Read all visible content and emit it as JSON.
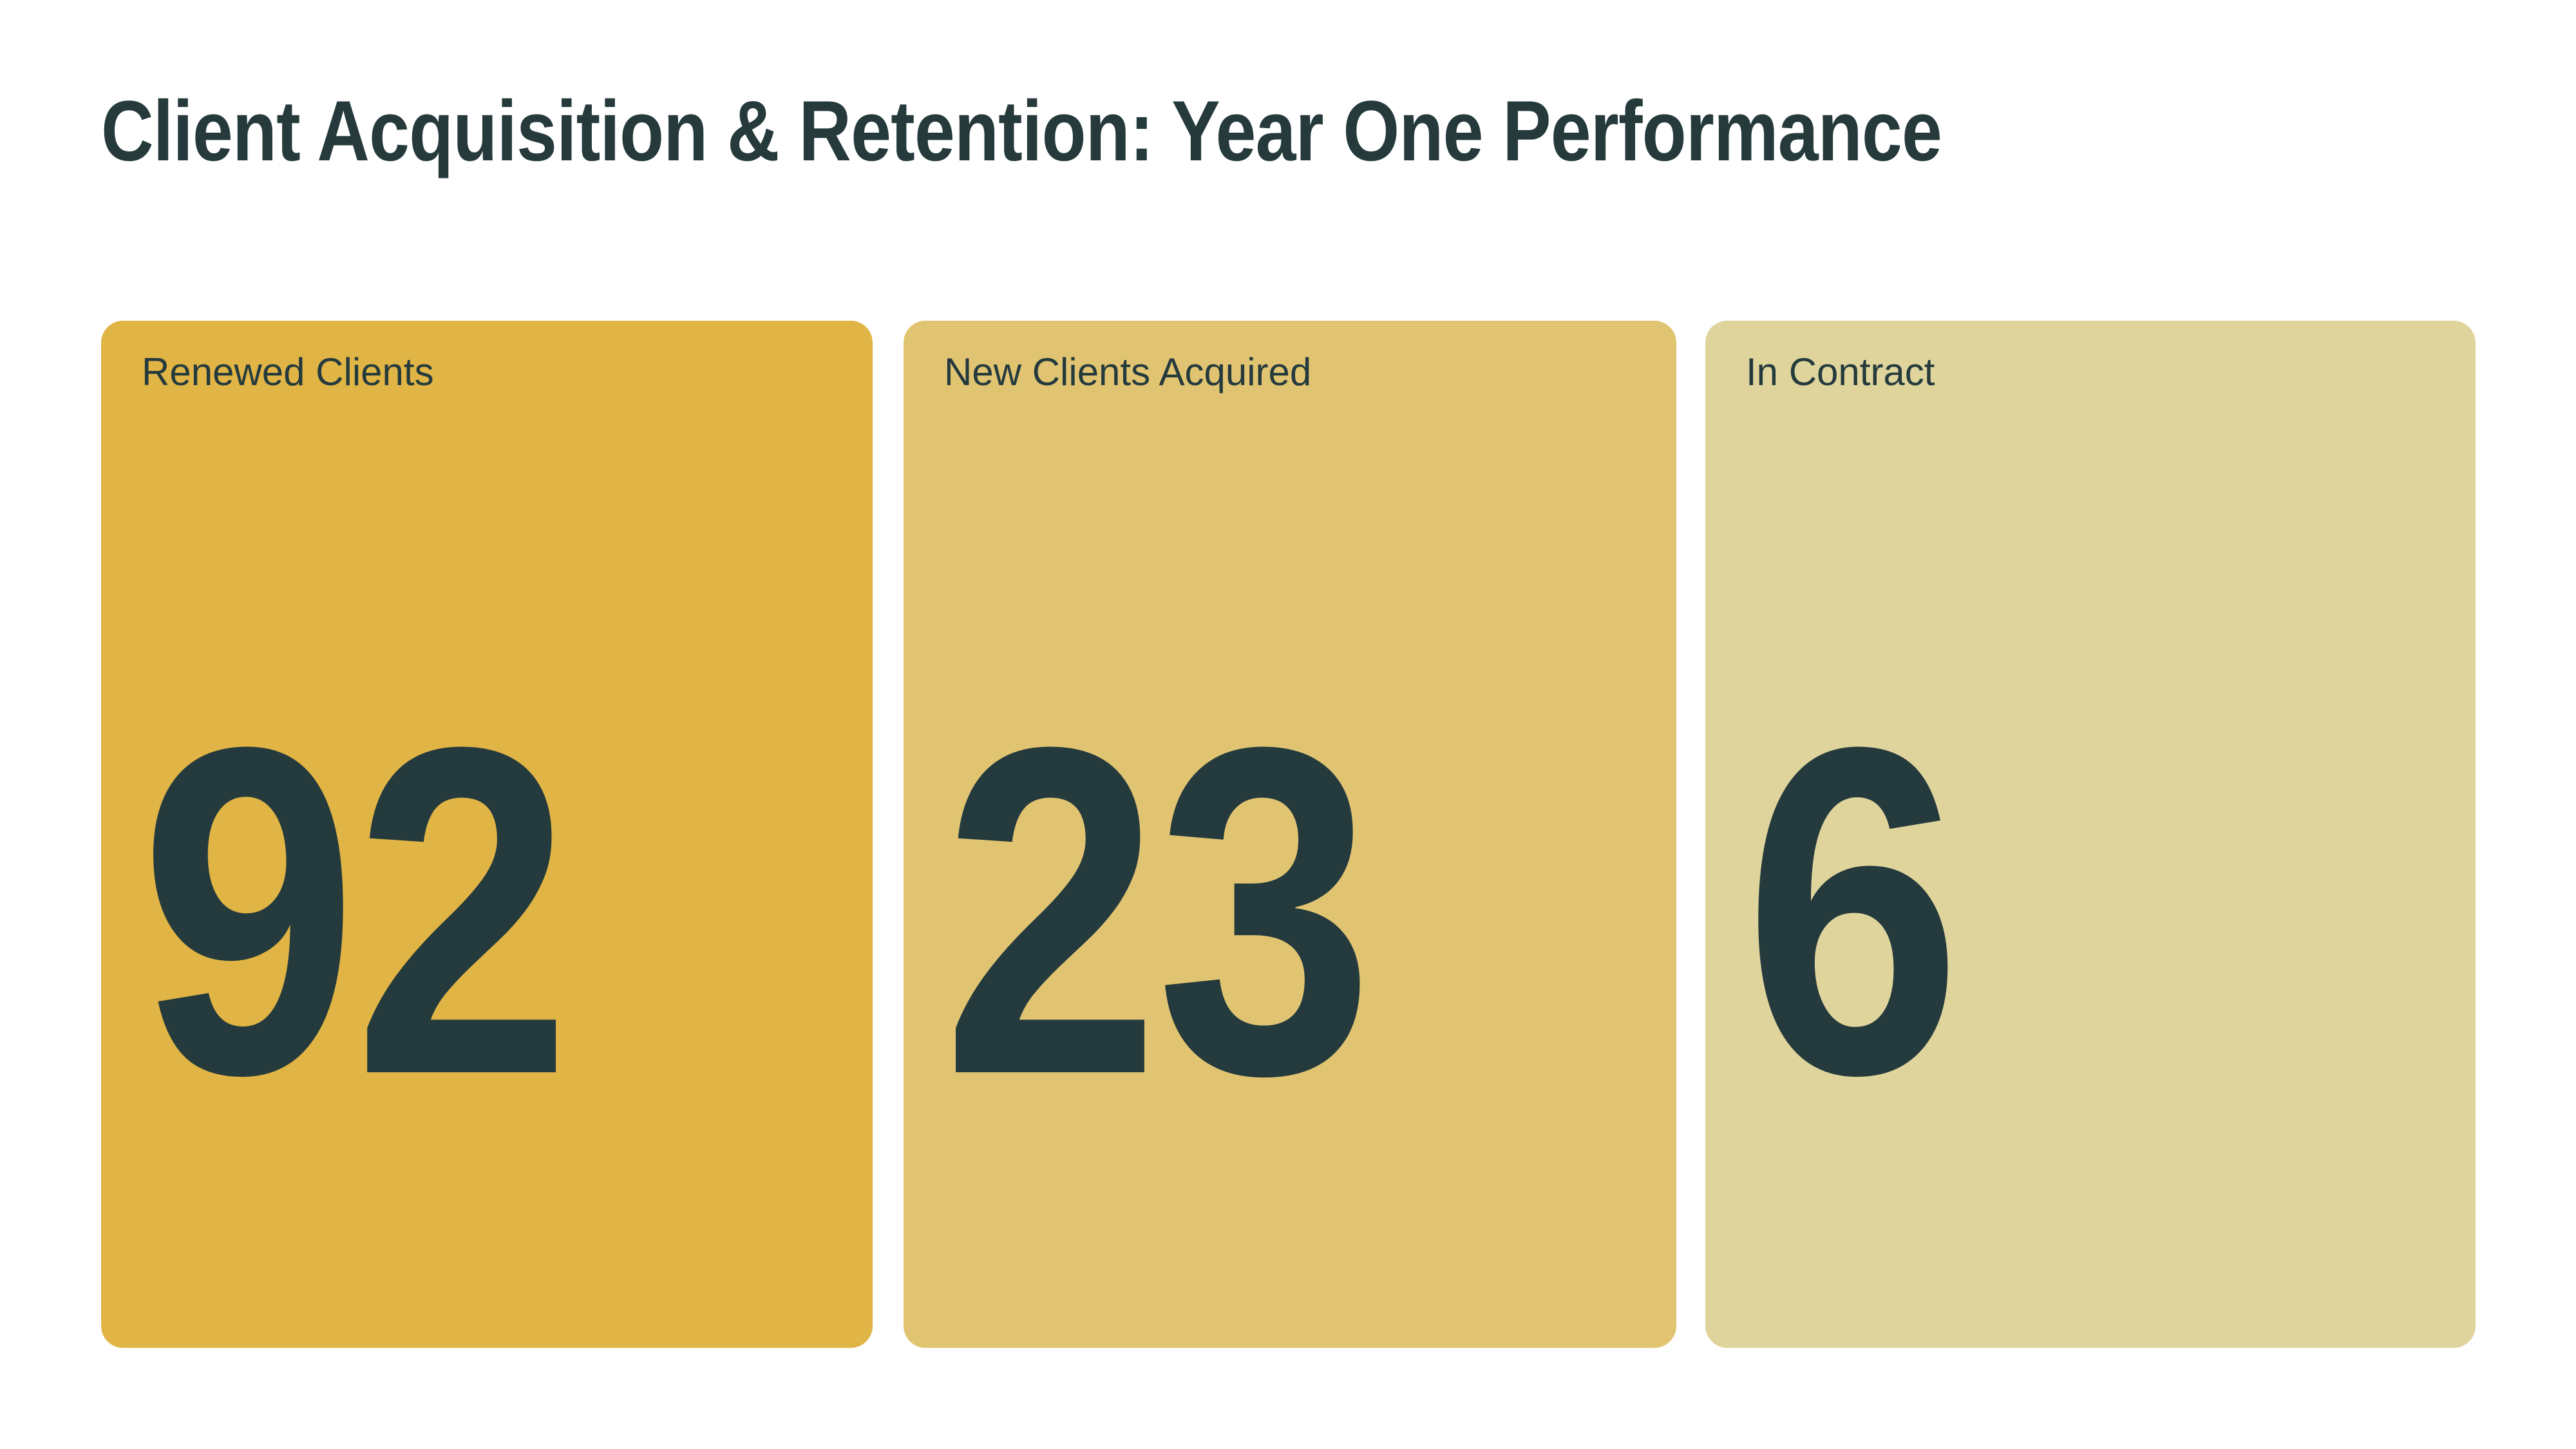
{
  "header": {
    "title": "Client Acquisition & Retention: Year One Performance"
  },
  "cards": [
    {
      "label": "Renewed Clients",
      "value": "92",
      "bg": "#e0b445"
    },
    {
      "label": "New Clients Acquired",
      "value": "23",
      "bg": "#e1c472"
    },
    {
      "label": "In Contract",
      "value": "6",
      "bg": "#dfd49c"
    }
  ],
  "colors": {
    "text": "#243a3d",
    "title_text": "#263a3c",
    "page_background": "#ffffff"
  },
  "chart_data": {
    "type": "table",
    "title": "Client Acquisition & Retention: Year One Performance",
    "categories": [
      "Renewed Clients",
      "New Clients Acquired",
      "In Contract"
    ],
    "values": [
      92,
      23,
      6
    ],
    "legend": "none",
    "layout": "three kpi cards in a row, gold color scale from saturated to pale"
  }
}
